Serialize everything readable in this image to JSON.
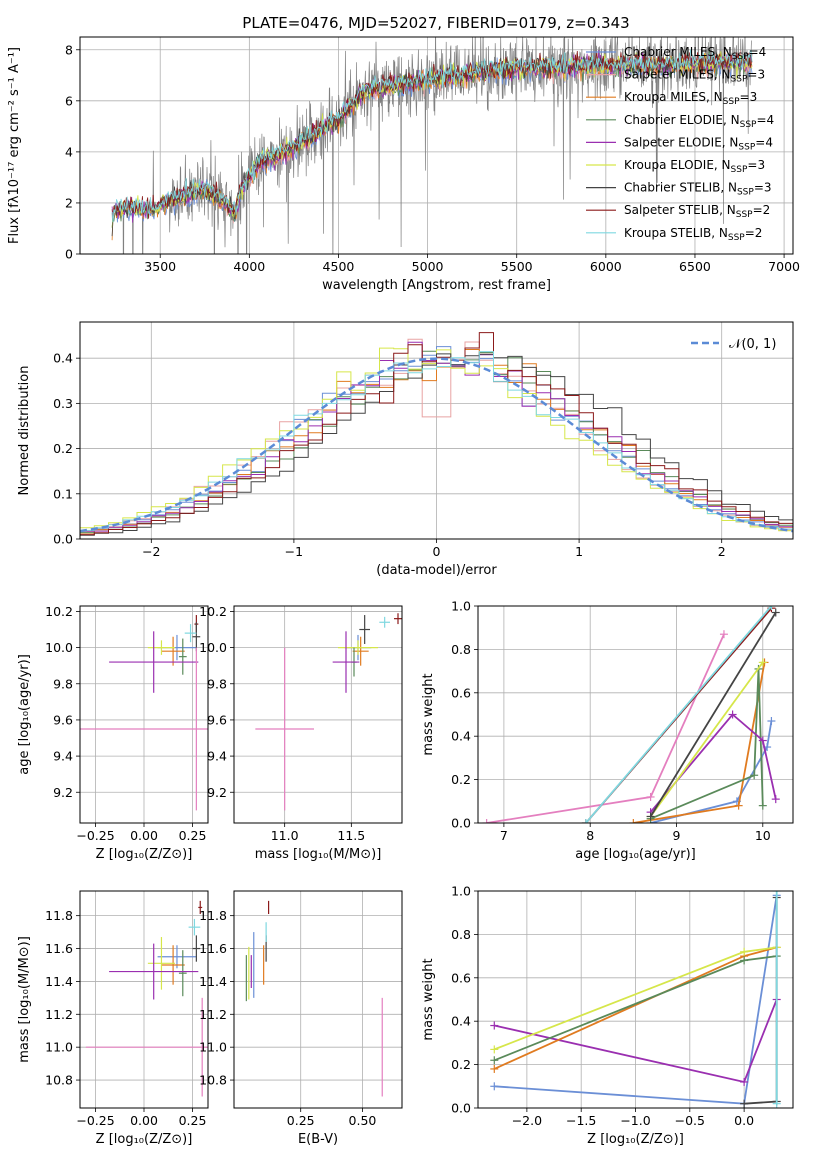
{
  "title": "PLATE=0476, MJD=52027, FIBERID=0179, z=0.343",
  "colors": {
    "chabrier_miles": "#6b8fd6",
    "salpeter_miles": "#e8a3a3",
    "kroupa_miles": "#e07b20",
    "chabrier_elodie": "#5a8a5a",
    "salpeter_elodie": "#9a2fb0",
    "kroupa_elodie": "#d6e64a",
    "chabrier_stelib": "#444444",
    "salpeter_stelib": "#8b1a1a",
    "kroupa_stelib": "#7fd8e0",
    "extra_pink": "#e47fbf",
    "data_gray": "#808080",
    "grid": "#b0b0b0"
  },
  "chart_data": [
    {
      "id": "spectrum",
      "type": "line",
      "xlabel": "wavelength [Angstrom, rest frame]",
      "ylabel": "Flux [fλ10⁻¹⁷ erg cm⁻² s⁻¹ A⁻¹]",
      "xlim": [
        3050,
        7050
      ],
      "ylim": [
        0,
        8.5
      ],
      "xticks": [
        3500,
        4000,
        4500,
        5000,
        5500,
        6000,
        6500,
        7000
      ],
      "yticks": [
        0,
        2,
        4,
        6,
        8
      ],
      "legend_position": "top-right",
      "legend": [
        {
          "label": "Chabrier MILES, N",
          "sub": "SSP",
          "tail": "=4",
          "color": "chabrier_miles"
        },
        {
          "label": "Salpeter MILES, N",
          "sub": "SSP",
          "tail": "=3",
          "color": "salpeter_miles"
        },
        {
          "label": "Kroupa MILES, N",
          "sub": "SSP",
          "tail": "=3",
          "color": "kroupa_miles"
        },
        {
          "label": "Chabrier ELODIE, N",
          "sub": "SSP",
          "tail": "=4",
          "color": "chabrier_elodie"
        },
        {
          "label": "Salpeter ELODIE, N",
          "sub": "SSP",
          "tail": "=4",
          "color": "salpeter_elodie"
        },
        {
          "label": "Kroupa ELODIE, N",
          "sub": "SSP",
          "tail": "=3",
          "color": "kroupa_elodie"
        },
        {
          "label": "Chabrier STELIB, N",
          "sub": "SSP",
          "tail": "=3",
          "color": "chabrier_stelib"
        },
        {
          "label": "Salpeter STELIB, N",
          "sub": "SSP",
          "tail": "=2",
          "color": "salpeter_stelib"
        },
        {
          "label": "Kroupa STELIB, N",
          "sub": "SSP",
          "tail": "=2",
          "color": "kroupa_stelib"
        }
      ],
      "continuum_points": [
        [
          3230,
          1.2
        ],
        [
          3240,
          1.7
        ],
        [
          3300,
          1.8
        ],
        [
          3400,
          1.75
        ],
        [
          3480,
          1.8
        ],
        [
          3550,
          2.1
        ],
        [
          3650,
          2.3
        ],
        [
          3750,
          2.5
        ],
        [
          3850,
          2.1
        ],
        [
          3920,
          1.6
        ],
        [
          3960,
          2.6
        ],
        [
          4050,
          3.5
        ],
        [
          4200,
          4.0
        ],
        [
          4350,
          4.6
        ],
        [
          4500,
          5.3
        ],
        [
          4650,
          6.4
        ],
        [
          4800,
          6.6
        ],
        [
          5000,
          6.8
        ],
        [
          5200,
          7.0
        ],
        [
          5400,
          7.2
        ],
        [
          5600,
          7.3
        ],
        [
          5800,
          7.3
        ],
        [
          6000,
          7.4
        ],
        [
          6200,
          7.4
        ],
        [
          6400,
          7.4
        ],
        [
          6600,
          7.5
        ],
        [
          6800,
          7.5
        ]
      ]
    },
    {
      "id": "residuals",
      "type": "line",
      "xlabel": "(data-model)/error",
      "ylabel": "Normed distribution",
      "xlim": [
        -2.5,
        2.5
      ],
      "ylim": [
        0,
        0.48
      ],
      "xticks": [
        -2,
        -1,
        0,
        1,
        2
      ],
      "yticks": [
        0.0,
        0.1,
        0.2,
        0.3,
        0.4
      ],
      "legend_position": "top-right",
      "legend_label": "𝒩(0, 1)",
      "normal_mean": 0,
      "normal_sigma": 1
    },
    {
      "id": "age_vs_Z",
      "type": "scatter",
      "xlabel": "Z [log₁₀(Z/Z⊙)]",
      "ylabel": "age  [log₁₀(age/yr)]",
      "xlim": [
        -0.33,
        0.33
      ],
      "ylim": [
        9.03,
        10.23
      ],
      "xticks": [
        -0.25,
        0.0,
        0.25
      ],
      "yticks": [
        9.2,
        9.4,
        9.6,
        9.8,
        10.0,
        10.2
      ],
      "points": [
        {
          "x": 0.17,
          "y": 10.0,
          "ex": 0.1,
          "ey": 0.07,
          "color": "chabrier_miles"
        },
        {
          "x": 0.15,
          "y": 9.98,
          "ex": 0.06,
          "ey": 0.08,
          "color": "kroupa_miles"
        },
        {
          "x": 0.09,
          "y": 10.0,
          "ex": 0.07,
          "ey": 0.04,
          "color": "kroupa_elodie"
        },
        {
          "x": 0.2,
          "y": 9.95,
          "ex": 0.02,
          "ey": 0.1,
          "color": "chabrier_elodie"
        },
        {
          "x": 0.05,
          "y": 9.92,
          "ex": 0.23,
          "ey": 0.17,
          "color": "salpeter_elodie"
        },
        {
          "x": 0.27,
          "y": 10.13,
          "ex": 0.01,
          "ey": 0.05,
          "color": "salpeter_stelib"
        },
        {
          "x": 0.27,
          "y": 10.06,
          "ex": 0.02,
          "ey": 0.08,
          "color": "chabrier_stelib"
        },
        {
          "x": 0.24,
          "y": 10.08,
          "ex": 0.03,
          "ey": 0.05,
          "color": "kroupa_stelib"
        },
        {
          "x": 0.27,
          "y": 9.55,
          "ex": 0.6,
          "ey": 0.45,
          "color": "extra_pink"
        }
      ]
    },
    {
      "id": "age_vs_mass",
      "type": "scatter",
      "xlabel": "mass [log₁₀(M/M⊙)]",
      "ylabel": "",
      "xlim": [
        10.62,
        11.88
      ],
      "ylim": [
        9.03,
        10.23
      ],
      "xticks": [
        11.0,
        11.5
      ],
      "yticks": [
        9.2,
        9.4,
        9.6,
        9.8,
        10.0,
        10.2
      ],
      "points": [
        {
          "x": 11.55,
          "y": 10.0,
          "ex": 0.1,
          "ey": 0.07,
          "color": "chabrier_miles"
        },
        {
          "x": 11.57,
          "y": 9.98,
          "ex": 0.06,
          "ey": 0.08,
          "color": "kroupa_miles"
        },
        {
          "x": 11.55,
          "y": 10.0,
          "ex": 0.15,
          "ey": 0.04,
          "color": "kroupa_elodie"
        },
        {
          "x": 11.52,
          "y": 9.92,
          "ex": 0.02,
          "ey": 0.08,
          "color": "chabrier_elodie"
        },
        {
          "x": 11.46,
          "y": 9.92,
          "ex": 0.1,
          "ey": 0.17,
          "color": "salpeter_elodie"
        },
        {
          "x": 11.85,
          "y": 10.16,
          "ex": 0.03,
          "ey": 0.03,
          "color": "salpeter_stelib"
        },
        {
          "x": 11.6,
          "y": 10.1,
          "ex": 0.04,
          "ey": 0.08,
          "color": "chabrier_stelib"
        },
        {
          "x": 11.75,
          "y": 10.14,
          "ex": 0.04,
          "ey": 0.03,
          "color": "kroupa_stelib"
        },
        {
          "x": 11.0,
          "y": 9.55,
          "ex": 0.22,
          "ey": 0.45,
          "color": "extra_pink"
        }
      ]
    },
    {
      "id": "weight_vs_age",
      "type": "line",
      "xlabel": "age  [log₁₀(age/yr)]",
      "ylabel": "mass weight",
      "xlim": [
        6.7,
        10.35
      ],
      "ylim": [
        0,
        1.0
      ],
      "xticks": [
        7,
        8,
        9,
        10
      ],
      "yticks": [
        0.0,
        0.2,
        0.4,
        0.6,
        0.8,
        1.0
      ],
      "series": [
        {
          "color": "extra_pink",
          "points": [
            [
              6.8,
              0.0
            ],
            [
              8.7,
              0.12
            ],
            [
              9.55,
              0.87
            ]
          ]
        },
        {
          "color": "chabrier_miles",
          "points": [
            [
              8.7,
              0.0
            ],
            [
              9.7,
              0.1
            ],
            [
              10.05,
              0.35
            ],
            [
              10.1,
              0.47
            ]
          ]
        },
        {
          "color": "kroupa_miles",
          "points": [
            [
              8.5,
              0.0
            ],
            [
              9.72,
              0.08
            ],
            [
              10.02,
              0.74
            ]
          ]
        },
        {
          "color": "chabrier_elodie",
          "points": [
            [
              8.7,
              0.02
            ],
            [
              9.9,
              0.22
            ],
            [
              9.95,
              0.71
            ],
            [
              10.0,
              0.08
            ]
          ]
        },
        {
          "color": "salpeter_elodie",
          "points": [
            [
              8.7,
              0.05
            ],
            [
              9.65,
              0.5
            ],
            [
              10.0,
              0.38
            ],
            [
              10.15,
              0.11
            ]
          ]
        },
        {
          "color": "kroupa_elodie",
          "points": [
            [
              8.7,
              0.03
            ],
            [
              10.0,
              0.74
            ]
          ]
        },
        {
          "color": "chabrier_stelib",
          "points": [
            [
              8.7,
              0.03
            ],
            [
              10.15,
              0.97
            ]
          ]
        },
        {
          "color": "salpeter_stelib",
          "points": [
            [
              7.95,
              0.0
            ],
            [
              10.1,
              0.99
            ]
          ]
        },
        {
          "color": "kroupa_stelib",
          "points": [
            [
              7.95,
              0.0
            ],
            [
              10.1,
              1.0
            ]
          ]
        }
      ]
    },
    {
      "id": "mass_vs_Z",
      "type": "scatter",
      "xlabel": "Z [log₁₀(Z/Z⊙)]",
      "ylabel": "mass [log₁₀(M/M⊙)]",
      "xlim": [
        -0.33,
        0.33
      ],
      "ylim": [
        10.63,
        11.95
      ],
      "xticks": [
        -0.25,
        0.0,
        0.25
      ],
      "yticks": [
        10.8,
        11.0,
        11.2,
        11.4,
        11.6,
        11.8
      ],
      "points": [
        {
          "x": 0.17,
          "y": 11.55,
          "ex": 0.1,
          "ey": 0.07,
          "color": "chabrier_miles"
        },
        {
          "x": 0.15,
          "y": 11.5,
          "ex": 0.06,
          "ey": 0.12,
          "color": "kroupa_miles"
        },
        {
          "x": 0.09,
          "y": 11.51,
          "ex": 0.07,
          "ey": 0.16,
          "color": "kroupa_elodie"
        },
        {
          "x": 0.2,
          "y": 11.45,
          "ex": 0.02,
          "ey": 0.14,
          "color": "chabrier_elodie"
        },
        {
          "x": 0.05,
          "y": 11.46,
          "ex": 0.23,
          "ey": 0.17,
          "color": "salpeter_elodie"
        },
        {
          "x": 0.29,
          "y": 11.85,
          "ex": 0.01,
          "ey": 0.04,
          "color": "salpeter_stelib"
        },
        {
          "x": 0.27,
          "y": 11.6,
          "ex": 0.02,
          "ey": 0.08,
          "color": "chabrier_stelib"
        },
        {
          "x": 0.26,
          "y": 11.73,
          "ex": 0.03,
          "ey": 0.05,
          "color": "kroupa_stelib"
        },
        {
          "x": 0.3,
          "y": 11.0,
          "ex": 0.6,
          "ey": 0.3,
          "color": "extra_pink"
        }
      ]
    },
    {
      "id": "mass_vs_ebv",
      "type": "scatter",
      "xlabel": "E(B-V)",
      "ylabel": "",
      "xlim": [
        -0.02,
        0.66
      ],
      "ylim": [
        10.63,
        11.95
      ],
      "xticks": [
        0.25,
        0.5
      ],
      "yticks": [
        10.8,
        11.0,
        11.2,
        11.4,
        11.6,
        11.8
      ],
      "points": [
        {
          "x": 0.06,
          "y": 11.5,
          "ex": 0.0,
          "ey": 0.2,
          "color": "chabrier_miles"
        },
        {
          "x": 0.1,
          "y": 11.5,
          "ex": 0.0,
          "ey": 0.12,
          "color": "kroupa_miles"
        },
        {
          "x": 0.04,
          "y": 11.45,
          "ex": 0.0,
          "ey": 0.16,
          "color": "kroupa_elodie"
        },
        {
          "x": 0.03,
          "y": 11.42,
          "ex": 0.0,
          "ey": 0.14,
          "color": "chabrier_elodie"
        },
        {
          "x": 0.05,
          "y": 11.46,
          "ex": 0.0,
          "ey": 0.1,
          "color": "salpeter_elodie"
        },
        {
          "x": 0.12,
          "y": 11.85,
          "ex": 0.0,
          "ey": 0.04,
          "color": "salpeter_stelib"
        },
        {
          "x": 0.11,
          "y": 11.6,
          "ex": 0.0,
          "ey": 0.08,
          "color": "chabrier_stelib"
        },
        {
          "x": 0.11,
          "y": 11.7,
          "ex": 0.0,
          "ey": 0.06,
          "color": "kroupa_stelib"
        },
        {
          "x": 0.58,
          "y": 11.0,
          "ex": 0.0,
          "ey": 0.3,
          "color": "extra_pink"
        }
      ]
    },
    {
      "id": "weight_vs_Z",
      "type": "line",
      "xlabel": "Z [log₁₀(Z/Z⊙)]",
      "ylabel": "mass weight",
      "xlim": [
        -2.45,
        0.45
      ],
      "ylim": [
        0,
        1.0
      ],
      "xticks": [
        -2.0,
        -1.5,
        -1.0,
        -0.5,
        0.0
      ],
      "yticks": [
        0.0,
        0.2,
        0.4,
        0.6,
        0.8,
        1.0
      ],
      "series": [
        {
          "color": "chabrier_miles",
          "points": [
            [
              -2.3,
              0.1
            ],
            [
              0.0,
              0.02
            ],
            [
              0.3,
              0.98
            ]
          ]
        },
        {
          "color": "salpeter_elodie",
          "points": [
            [
              -2.3,
              0.38
            ],
            [
              0.0,
              0.12
            ],
            [
              0.3,
              0.5
            ]
          ]
        },
        {
          "color": "kroupa_miles",
          "points": [
            [
              -2.3,
              0.18
            ],
            [
              0.0,
              0.7
            ],
            [
              0.3,
              0.74
            ]
          ]
        },
        {
          "color": "chabrier_elodie",
          "points": [
            [
              -2.3,
              0.22
            ],
            [
              0.0,
              0.68
            ],
            [
              0.3,
              0.7
            ]
          ]
        },
        {
          "color": "kroupa_elodie",
          "points": [
            [
              -2.3,
              0.27
            ],
            [
              0.0,
              0.72
            ],
            [
              0.3,
              0.74
            ]
          ]
        },
        {
          "color": "chabrier_stelib",
          "points": [
            [
              0.0,
              0.02
            ],
            [
              0.3,
              0.03
            ],
            [
              0.3,
              0.97
            ]
          ]
        },
        {
          "color": "kroupa_stelib",
          "points": [
            [
              0.3,
              0.02
            ],
            [
              0.3,
              1.0
            ]
          ]
        }
      ]
    }
  ]
}
